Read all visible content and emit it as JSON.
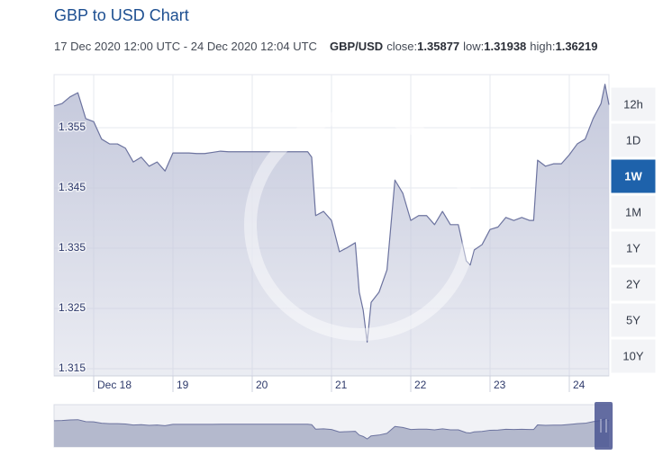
{
  "chart_data": {
    "type": "area",
    "title": "GBP to USD Chart",
    "period": "17 Dec 2020 12:00 UTC - 24 Dec 2020 12:04 UTC",
    "pair": "GBP/USD",
    "close_label": "close:",
    "close": 1.35877,
    "low_label": "low:",
    "low": 1.31938,
    "high_label": "high:",
    "high": 1.36219,
    "x": [
      17.5,
      17.6,
      17.7,
      17.8,
      17.9,
      18.0,
      18.1,
      18.2,
      18.3,
      18.4,
      18.5,
      18.6,
      18.7,
      18.8,
      18.9,
      19.0,
      19.1,
      19.2,
      19.3,
      19.4,
      19.5,
      19.6,
      19.7,
      19.8,
      19.9,
      20.0,
      20.1,
      20.2,
      20.3,
      20.4,
      20.5,
      20.6,
      20.7,
      20.75,
      20.8,
      20.9,
      21.0,
      21.1,
      21.2,
      21.3,
      21.35,
      21.4,
      21.45,
      21.5,
      21.6,
      21.7,
      21.8,
      21.9,
      22.0,
      22.1,
      22.2,
      22.3,
      22.4,
      22.5,
      22.6,
      22.7,
      22.75,
      22.8,
      22.9,
      23.0,
      23.1,
      23.2,
      23.3,
      23.4,
      23.5,
      23.55,
      23.6,
      23.7,
      23.8,
      23.9,
      24.0,
      24.1,
      24.2,
      24.3,
      24.4,
      24.45,
      24.5
    ],
    "values": [
      1.3586,
      1.359,
      1.3601,
      1.3608,
      1.3565,
      1.356,
      1.3531,
      1.3523,
      1.3523,
      1.3516,
      1.3493,
      1.3501,
      1.3486,
      1.3493,
      1.3478,
      1.3508,
      1.3508,
      1.3508,
      1.3507,
      1.3507,
      1.3509,
      1.3511,
      1.351,
      1.351,
      1.351,
      1.351,
      1.351,
      1.351,
      1.351,
      1.351,
      1.351,
      1.351,
      1.351,
      1.3501,
      1.3404,
      1.3411,
      1.3396,
      1.3344,
      1.3351,
      1.3359,
      1.3277,
      1.3247,
      1.3194,
      1.326,
      1.3277,
      1.3314,
      1.3463,
      1.3441,
      1.3396,
      1.3404,
      1.3404,
      1.3389,
      1.3411,
      1.3389,
      1.3389,
      1.3329,
      1.3322,
      1.3347,
      1.3356,
      1.3381,
      1.3385,
      1.3401,
      1.3396,
      1.3401,
      1.3396,
      1.3396,
      1.3496,
      1.3486,
      1.349,
      1.349,
      1.3505,
      1.3523,
      1.3531,
      1.3565,
      1.359,
      1.3622,
      1.3588
    ],
    "color": "#6c739f",
    "fill": "#c5c9dc",
    "xlim": [
      17.5,
      24.5
    ],
    "xticks": [
      {
        "value": 18,
        "label": "Dec 18"
      },
      19,
      20,
      21,
      22,
      23,
      24
    ],
    "ylim": [
      1.3138,
      1.3638
    ],
    "yticks": [
      1.355,
      1.345,
      1.335,
      1.325,
      1.315
    ],
    "grid": true,
    "ranges": [
      "12h",
      "1D",
      "1W",
      "1M",
      "1Y",
      "2Y",
      "5Y",
      "10Y"
    ],
    "selected_range": 2,
    "navigator": true
  }
}
